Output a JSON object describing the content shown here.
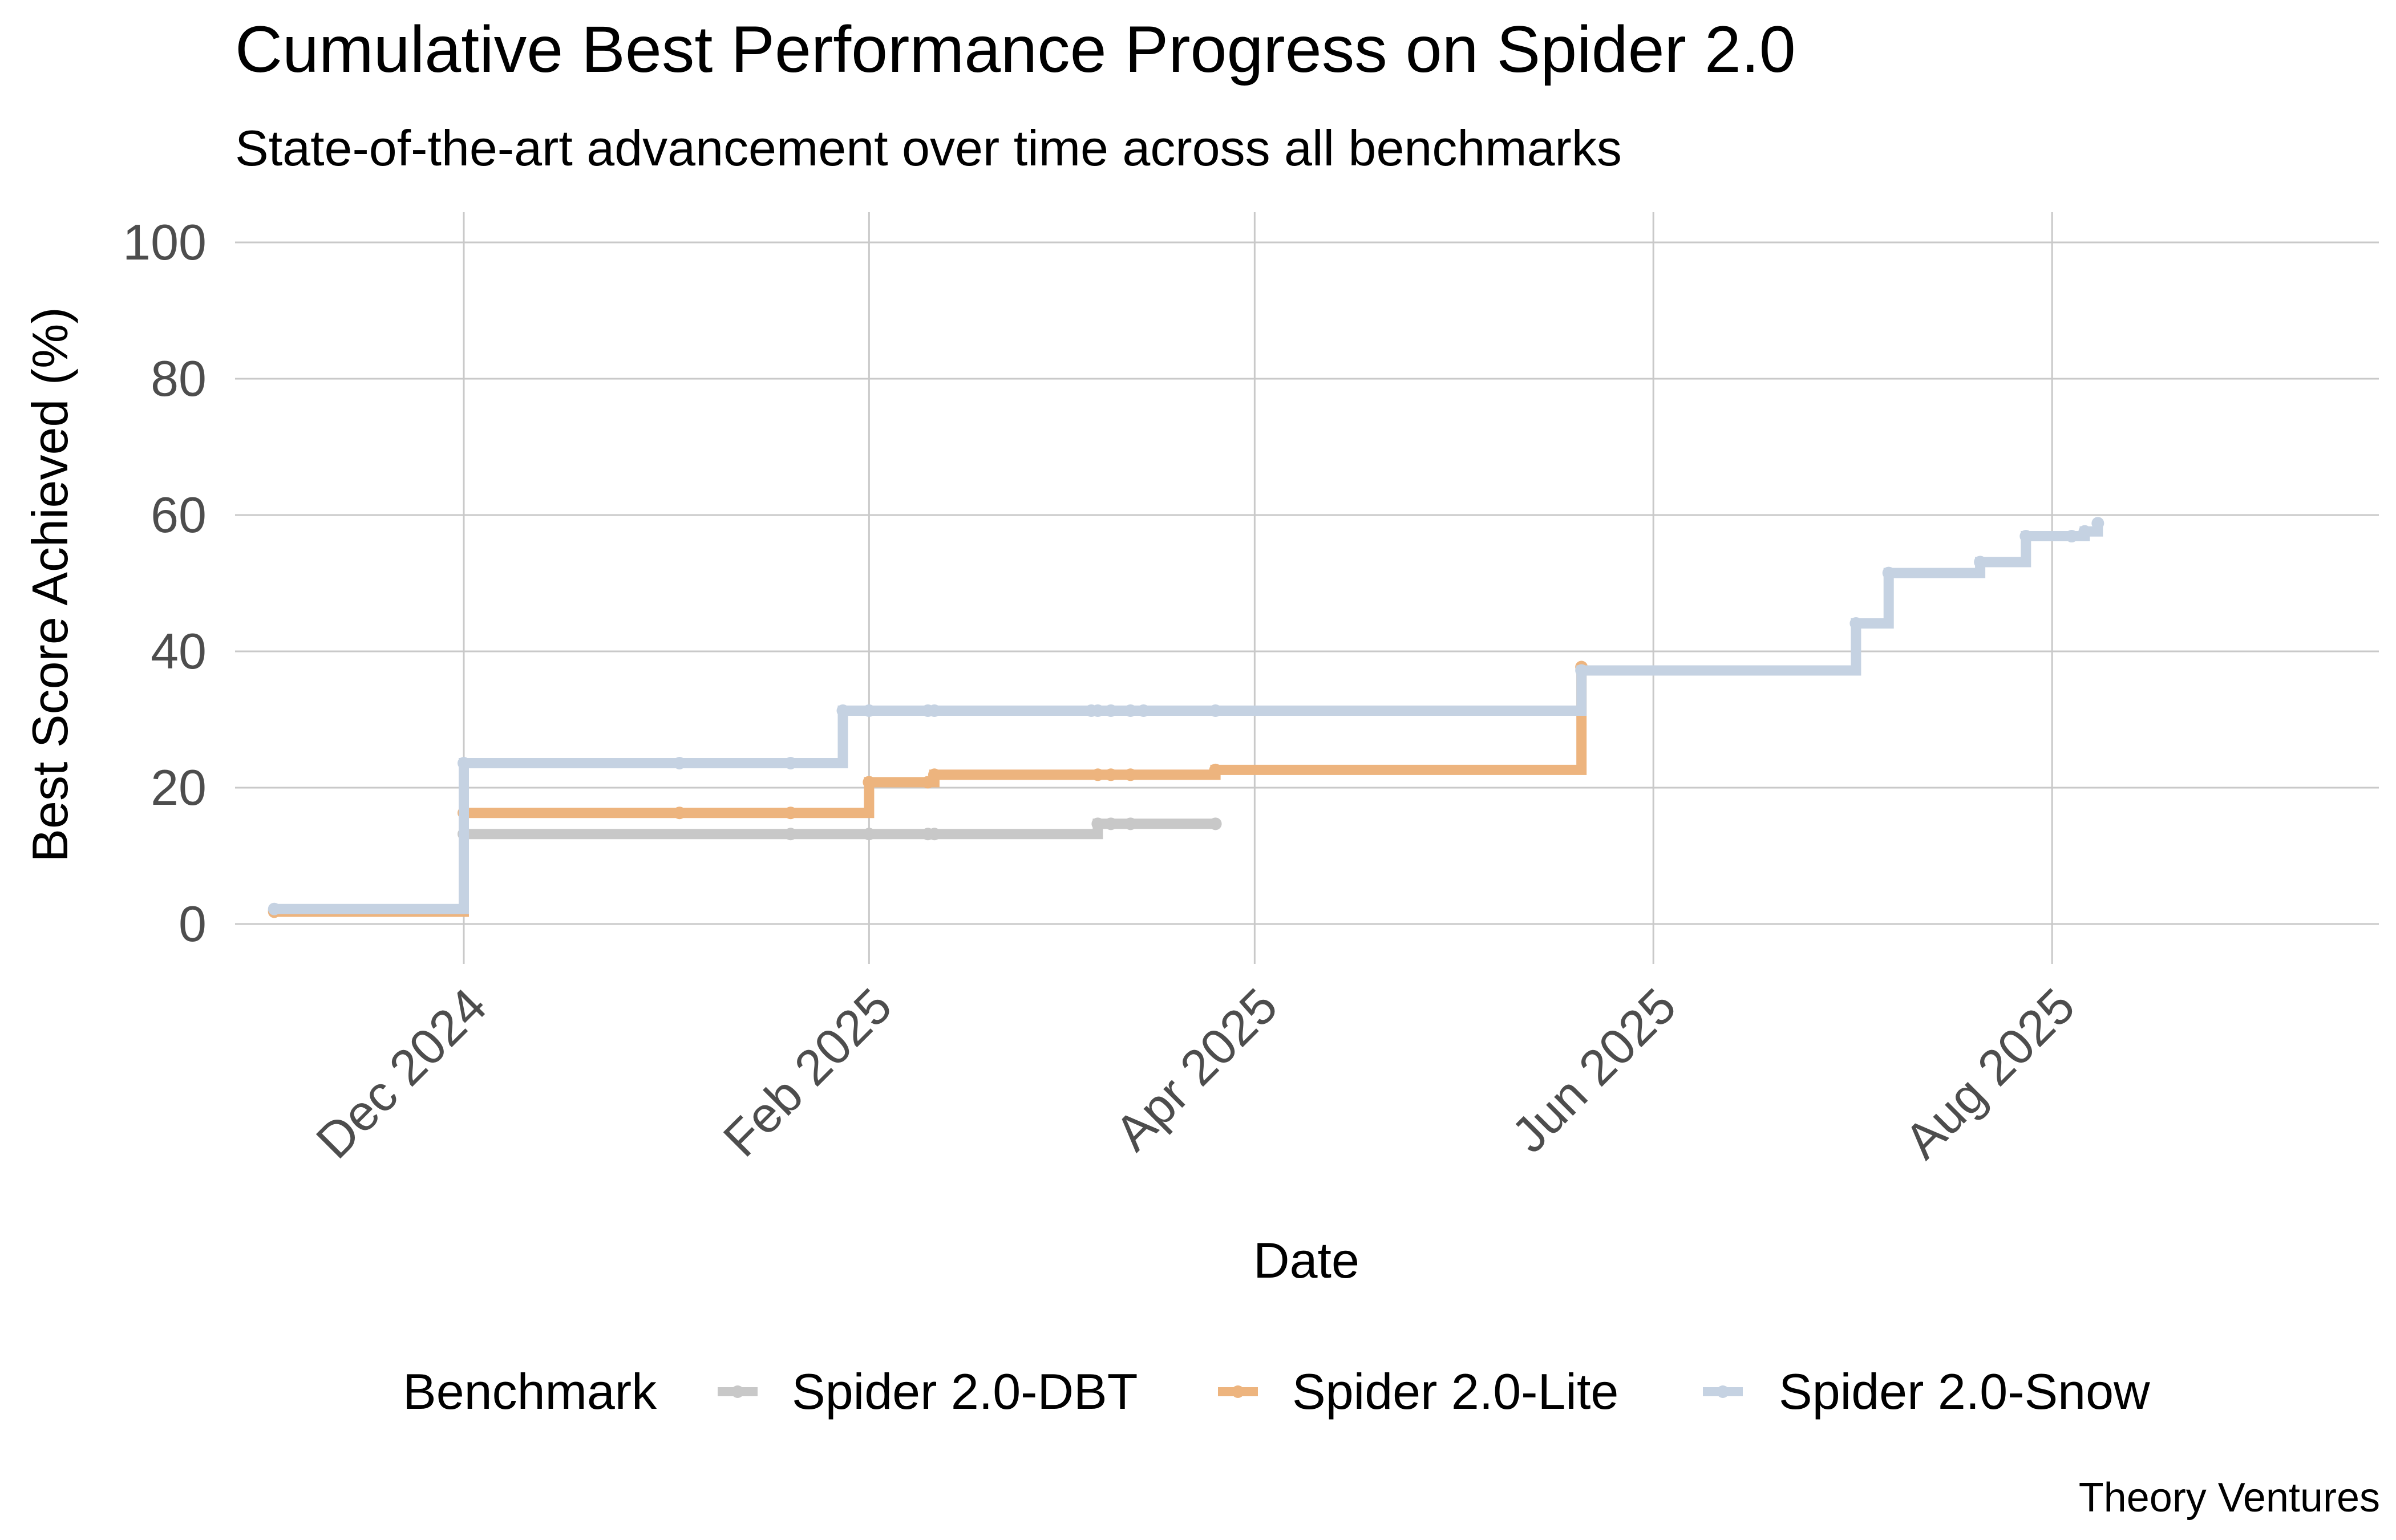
{
  "chart_data": {
    "type": "line",
    "step": true,
    "title": "Cumulative Best Performance Progress on Spider 2.0",
    "subtitle": "State-of-the-art advancement over time across all benchmarks",
    "xlabel": "Date",
    "ylabel": "Best Score Achieved (%)",
    "ylim": [
      0,
      100
    ],
    "yticks": [
      0,
      20,
      40,
      60,
      80,
      100
    ],
    "xlim": [
      "2024-10-27",
      "2025-09-20"
    ],
    "xticks": [
      {
        "date": "2024-12-01",
        "label": "Dec 2024"
      },
      {
        "date": "2025-02-01",
        "label": "Feb 2025"
      },
      {
        "date": "2025-04-01",
        "label": "Apr 2025"
      },
      {
        "date": "2025-06-01",
        "label": "Jun 2025"
      },
      {
        "date": "2025-08-01",
        "label": "Aug 2025"
      }
    ],
    "legend": {
      "title": "Benchmark",
      "position": "bottom"
    },
    "caption": "Theory Ventures",
    "series": [
      {
        "name": "Spider 2.0-DBT",
        "color": "#c8c8c8",
        "points": [
          {
            "date": "2024-11-02",
            "value": 2.0
          },
          {
            "date": "2024-12-01",
            "value": 13.2
          },
          {
            "date": "2025-01-20",
            "value": 13.2
          },
          {
            "date": "2025-02-01",
            "value": 13.2
          },
          {
            "date": "2025-02-10",
            "value": 13.2
          },
          {
            "date": "2025-02-11",
            "value": 13.2
          },
          {
            "date": "2025-03-08",
            "value": 14.7
          },
          {
            "date": "2025-03-10",
            "value": 14.7
          },
          {
            "date": "2025-03-13",
            "value": 14.7
          },
          {
            "date": "2025-03-26",
            "value": 14.7
          }
        ]
      },
      {
        "name": "Spider 2.0-Lite",
        "color": "#edb47e",
        "points": [
          {
            "date": "2024-11-02",
            "value": 1.8
          },
          {
            "date": "2024-12-01",
            "value": 16.3
          },
          {
            "date": "2025-01-03",
            "value": 16.3
          },
          {
            "date": "2025-01-20",
            "value": 16.3
          },
          {
            "date": "2025-02-01",
            "value": 20.8
          },
          {
            "date": "2025-02-10",
            "value": 20.8
          },
          {
            "date": "2025-02-11",
            "value": 21.9
          },
          {
            "date": "2025-03-08",
            "value": 21.9
          },
          {
            "date": "2025-03-10",
            "value": 21.9
          },
          {
            "date": "2025-03-13",
            "value": 21.9
          },
          {
            "date": "2025-03-26",
            "value": 22.6
          },
          {
            "date": "2025-05-21",
            "value": 37.7
          }
        ]
      },
      {
        "name": "Spider 2.0-Snow",
        "color": "#c5d2e2",
        "points": [
          {
            "date": "2024-11-02",
            "value": 2.2
          },
          {
            "date": "2024-12-01",
            "value": 23.6
          },
          {
            "date": "2025-01-03",
            "value": 23.6
          },
          {
            "date": "2025-01-20",
            "value": 23.6
          },
          {
            "date": "2025-01-28",
            "value": 31.3
          },
          {
            "date": "2025-02-01",
            "value": 31.3
          },
          {
            "date": "2025-02-10",
            "value": 31.3
          },
          {
            "date": "2025-02-11",
            "value": 31.3
          },
          {
            "date": "2025-03-07",
            "value": 31.3
          },
          {
            "date": "2025-03-08",
            "value": 31.3
          },
          {
            "date": "2025-03-10",
            "value": 31.3
          },
          {
            "date": "2025-03-13",
            "value": 31.3
          },
          {
            "date": "2025-03-15",
            "value": 31.3
          },
          {
            "date": "2025-03-26",
            "value": 31.3
          },
          {
            "date": "2025-05-21",
            "value": 37.2
          },
          {
            "date": "2025-07-02",
            "value": 44.1
          },
          {
            "date": "2025-07-07",
            "value": 51.5
          },
          {
            "date": "2025-07-21",
            "value": 53.1
          },
          {
            "date": "2025-07-28",
            "value": 56.9
          },
          {
            "date": "2025-08-04",
            "value": 56.9
          },
          {
            "date": "2025-08-06",
            "value": 57.6
          },
          {
            "date": "2025-08-08",
            "value": 58.8
          }
        ]
      }
    ]
  }
}
